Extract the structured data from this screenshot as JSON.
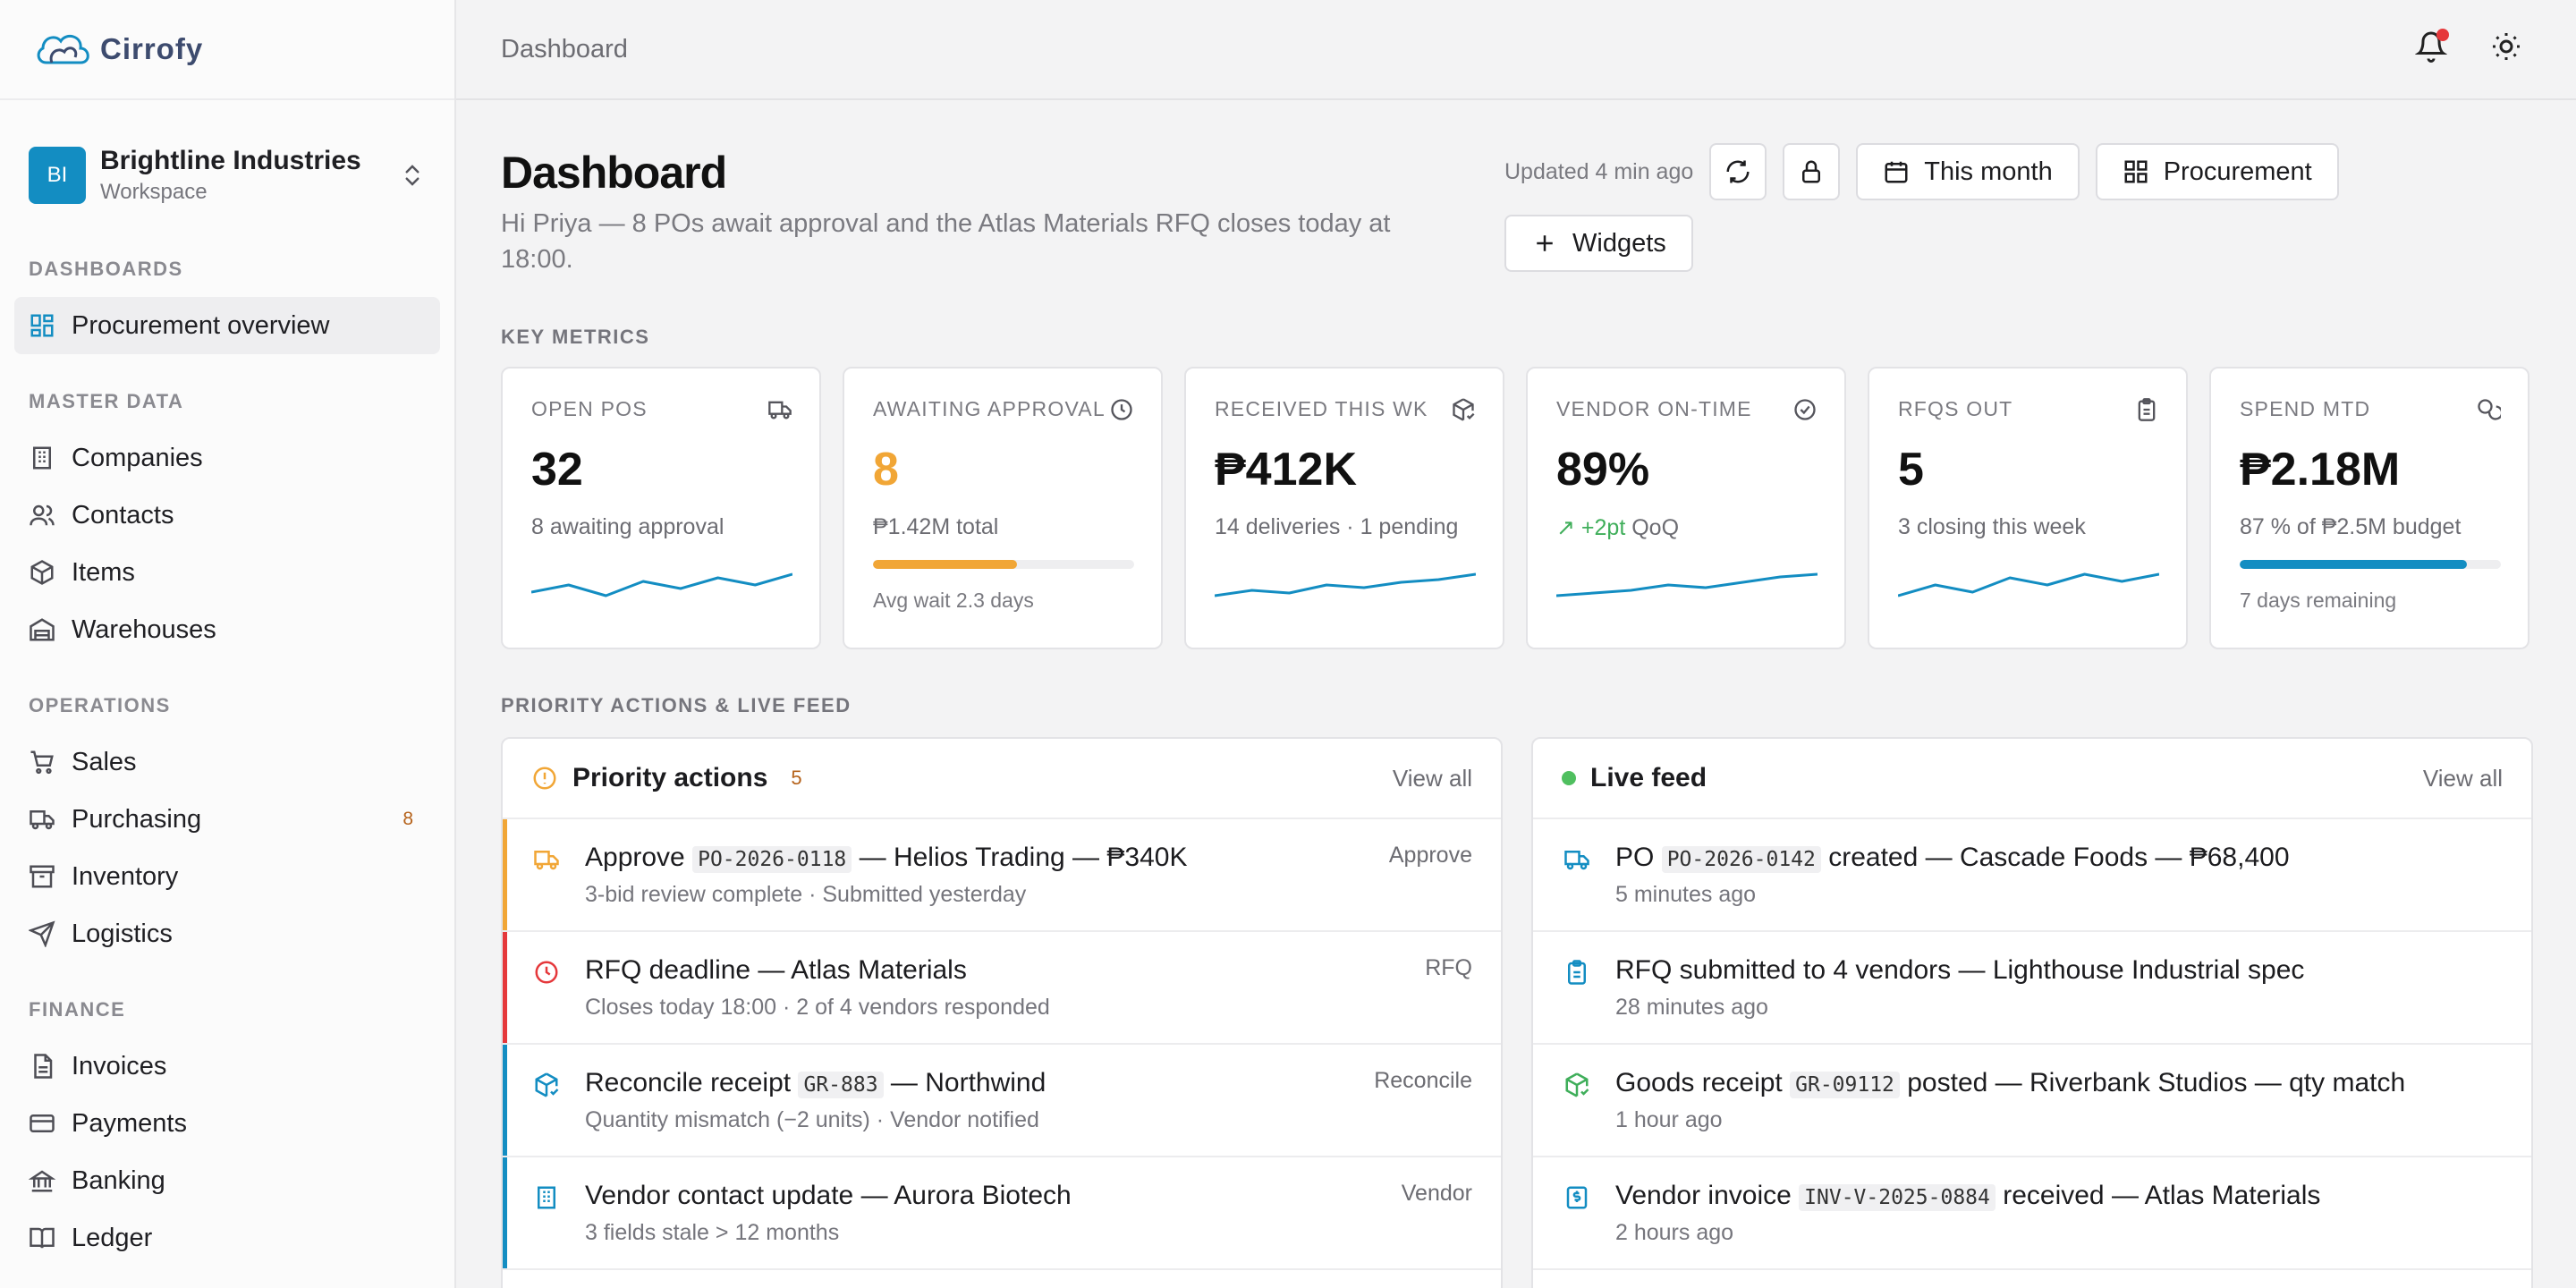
{
  "brand": {
    "name": "Cirrofy"
  },
  "workspace": {
    "initials": "BI",
    "name": "Brightline Industries",
    "subtitle": "Workspace"
  },
  "nav": {
    "dashboards": {
      "label": "DASHBOARDS",
      "items": [
        {
          "label": "Procurement overview",
          "icon": "dashboard-grid-icon",
          "active": true
        }
      ]
    },
    "master_data": {
      "label": "MASTER DATA",
      "items": [
        {
          "label": "Companies",
          "icon": "building-icon"
        },
        {
          "label": "Contacts",
          "icon": "users-icon"
        },
        {
          "label": "Items",
          "icon": "package-icon"
        },
        {
          "label": "Warehouses",
          "icon": "warehouse-icon"
        }
      ]
    },
    "operations": {
      "label": "OPERATIONS",
      "items": [
        {
          "label": "Sales",
          "icon": "cart-icon"
        },
        {
          "label": "Purchasing",
          "icon": "truck-icon",
          "badge": "8"
        },
        {
          "label": "Inventory",
          "icon": "archive-icon"
        },
        {
          "label": "Logistics",
          "icon": "send-icon"
        }
      ]
    },
    "finance": {
      "label": "FINANCE",
      "items": [
        {
          "label": "Invoices",
          "icon": "file-icon"
        },
        {
          "label": "Payments",
          "icon": "credit-card-icon"
        },
        {
          "label": "Banking",
          "icon": "bank-icon"
        },
        {
          "label": "Ledger",
          "icon": "book-icon"
        }
      ]
    }
  },
  "topbar": {
    "breadcrumb": "Dashboard"
  },
  "header": {
    "title": "Dashboard",
    "subtitle": "Hi Priya — 8 POs await approval and the Atlas Materials RFQ closes today at 18:00.",
    "updated": "Updated 4 min ago",
    "period_label": "This month",
    "view_label": "Procurement",
    "widgets_label": "Widgets"
  },
  "sections": {
    "metrics": "KEY METRICS",
    "feed": "PRIORITY ACTIONS & LIVE FEED"
  },
  "metrics": [
    {
      "label": "OPEN POS",
      "icon": "truck-icon",
      "value": "32",
      "sub": "8 awaiting approval",
      "spark": [
        4,
        6,
        3,
        7,
        5,
        8,
        6,
        9
      ]
    },
    {
      "label": "AWAITING APPROVAL",
      "icon": "clock-icon",
      "value": "8",
      "sub": "₱1.42M total",
      "progress": 0.55,
      "progress_color": "#f1a636",
      "foot": "Avg wait 2.3 days"
    },
    {
      "label": "RECEIVED THIS WK",
      "icon": "package-check-icon",
      "value": "₱412K",
      "sub": "14 deliveries · 1 pending",
      "spark": [
        3,
        5,
        4,
        7,
        6,
        8,
        9,
        11
      ]
    },
    {
      "label": "VENDOR ON-TIME",
      "icon": "check-circle-icon",
      "value": "89%",
      "sub_trend": "+2pt",
      "sub": "QoQ",
      "spark": [
        3,
        4,
        5,
        7,
        6,
        8,
        10,
        11
      ]
    },
    {
      "label": "RFQS OUT",
      "icon": "clipboard-icon",
      "value": "5",
      "sub": "3 closing this week",
      "spark": [
        3,
        6,
        4,
        8,
        6,
        9,
        7,
        9
      ]
    },
    {
      "label": "SPEND MTD",
      "icon": "coins-icon",
      "value": "₱2.18M",
      "sub": "87 % of ₱2.5M budget",
      "progress": 0.87,
      "progress_color": "#138dc2",
      "foot": "7 days remaining"
    }
  ],
  "priority": {
    "title": "Priority actions",
    "count": "5",
    "view_all": "View all",
    "rows": [
      {
        "pre": "Approve",
        "code": "PO-2026-0118",
        "post": "— Helios Trading — ₱340K",
        "sub": "3-bid review complete · Submitted yesterday",
        "action": "Approve",
        "color": "#f1a636",
        "icon": "truck-icon"
      },
      {
        "pre": "RFQ deadline — Atlas Materials",
        "code": "",
        "post": "",
        "sub": "Closes today 18:00 · 2 of 4 vendors responded",
        "action": "RFQ",
        "color": "#e5383b",
        "icon": "clock-icon"
      },
      {
        "pre": "Reconcile receipt",
        "code": "GR-883",
        "post": "— Northwind",
        "sub": "Quantity mismatch (−2 units) · Vendor notified",
        "action": "Reconcile",
        "color": "#138dc2",
        "icon": "package-check-icon"
      },
      {
        "pre": "Vendor contact update — Aurora Biotech",
        "code": "",
        "post": "",
        "sub": "3 fields stale > 12 months",
        "action": "Vendor",
        "color": "#138dc2",
        "icon": "building-icon"
      }
    ]
  },
  "feed": {
    "title": "Live feed",
    "view_all": "View all",
    "rows": [
      {
        "pre": "PO",
        "code": "PO-2026-0142",
        "post": "created — Cascade Foods — ₱68,400",
        "sub": "5 minutes ago",
        "icon": "truck-icon",
        "color": "#138dc2"
      },
      {
        "pre": "RFQ submitted to 4 vendors — Lighthouse Industrial spec",
        "code": "",
        "post": "",
        "sub": "28 minutes ago",
        "icon": "clipboard-icon",
        "color": "#138dc2"
      },
      {
        "pre": "Goods receipt",
        "code": "GR-09112",
        "post": "posted — Riverbank Studios — qty match",
        "sub": "1 hour ago",
        "icon": "package-check-icon",
        "color": "#3fae5a"
      },
      {
        "pre": "Vendor invoice",
        "code": "INV-V-2025-0884",
        "post": "received — Atlas Materials",
        "sub": "2 hours ago",
        "icon": "invoice-icon",
        "color": "#138dc2"
      }
    ]
  },
  "colors": {
    "accent": "#138dc2",
    "amber": "#f1a636",
    "danger": "#e5383b",
    "success": "#3fae5a"
  }
}
